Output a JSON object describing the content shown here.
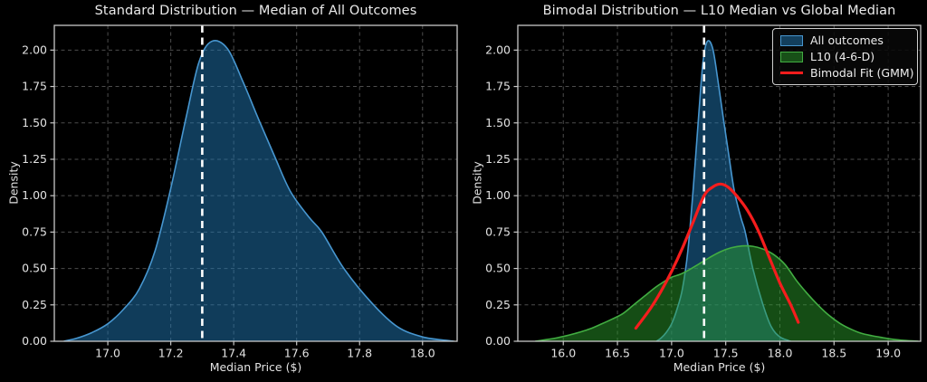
{
  "figure": {
    "bg_color": "#000000",
    "text_color": "#e2e2e2",
    "grid_color": "#b4b4b4",
    "grid_opacity": 0.42,
    "spine_color": "#c8c8c8",
    "tick_color": "#c8c8c8"
  },
  "chart_data": [
    {
      "type": "area",
      "title": "Standard Distribution — Median of All Outcomes",
      "xlabel": "Median Price ($)",
      "ylabel": "Density",
      "xlim": [
        16.83,
        18.11
      ],
      "ylim": [
        0,
        2.17
      ],
      "xticks": [
        17.0,
        17.2,
        17.4,
        17.6,
        17.8,
        18.0
      ],
      "xtick_labels": [
        "17.0",
        "17.2",
        "17.4",
        "17.6",
        "17.8",
        "18.0"
      ],
      "yticks": [
        0,
        0.25,
        0.5,
        0.75,
        1.0,
        1.25,
        1.5,
        1.75,
        2.0
      ],
      "ytick_labels": [
        "0.00",
        "0.25",
        "0.50",
        "0.75",
        "1.00",
        "1.25",
        "1.50",
        "1.75",
        "2.00"
      ],
      "grid": true,
      "legend": null,
      "median_line": {
        "x": 17.3,
        "color": "#ffffff",
        "style": "dashed"
      },
      "series": [
        {
          "name": "All outcomes",
          "kind": "area",
          "color": "#1f77b4",
          "stroke": "#4796cf",
          "fill_opacity": 0.5,
          "points": [
            [
              16.86,
              0
            ],
            [
              16.9,
              0.02
            ],
            [
              16.95,
              0.06
            ],
            [
              17.0,
              0.12
            ],
            [
              17.05,
              0.22
            ],
            [
              17.1,
              0.36
            ],
            [
              17.15,
              0.62
            ],
            [
              17.2,
              1.05
            ],
            [
              17.25,
              1.55
            ],
            [
              17.29,
              1.92
            ],
            [
              17.33,
              2.06
            ],
            [
              17.38,
              2.01
            ],
            [
              17.43,
              1.78
            ],
            [
              17.48,
              1.52
            ],
            [
              17.53,
              1.27
            ],
            [
              17.58,
              1.03
            ],
            [
              17.64,
              0.85
            ],
            [
              17.68,
              0.75
            ],
            [
              17.75,
              0.5
            ],
            [
              17.84,
              0.26
            ],
            [
              17.92,
              0.1
            ],
            [
              18.0,
              0.03
            ],
            [
              18.08,
              0.005
            ],
            [
              18.1,
              0
            ]
          ]
        }
      ]
    },
    {
      "type": "area",
      "title": "Bimodal Distribution — L10 Median vs Global Median",
      "xlabel": "Median Price ($)",
      "ylabel": "Density",
      "xlim": [
        15.58,
        19.3
      ],
      "ylim": [
        0,
        2.17
      ],
      "xticks": [
        16.0,
        16.5,
        17.0,
        17.5,
        18.0,
        18.5,
        19.0
      ],
      "xtick_labels": [
        "16.0",
        "16.5",
        "17.0",
        "17.5",
        "18.0",
        "18.5",
        "19.0"
      ],
      "yticks": [
        0,
        0.25,
        0.5,
        0.75,
        1.0,
        1.25,
        1.5,
        1.75,
        2.0
      ],
      "ytick_labels": [
        "0.00",
        "0.25",
        "0.50",
        "0.75",
        "1.00",
        "1.25",
        "1.50",
        "1.75",
        "2.00"
      ],
      "grid": true,
      "legend": {
        "position": "upper right"
      },
      "median_line": {
        "x": 17.3,
        "color": "#ffffff",
        "style": "dashed"
      },
      "series": [
        {
          "name": "All outcomes",
          "kind": "area",
          "color": "#1f77b4",
          "stroke": "#4796cf",
          "fill_opacity": 0.5,
          "points": [
            [
              16.86,
              0
            ],
            [
              16.9,
              0.02
            ],
            [
              16.95,
              0.06
            ],
            [
              17.0,
              0.12
            ],
            [
              17.05,
              0.22
            ],
            [
              17.1,
              0.36
            ],
            [
              17.15,
              0.62
            ],
            [
              17.2,
              1.05
            ],
            [
              17.25,
              1.55
            ],
            [
              17.29,
              1.92
            ],
            [
              17.33,
              2.06
            ],
            [
              17.38,
              2.01
            ],
            [
              17.43,
              1.78
            ],
            [
              17.48,
              1.52
            ],
            [
              17.53,
              1.27
            ],
            [
              17.58,
              1.03
            ],
            [
              17.64,
              0.85
            ],
            [
              17.68,
              0.75
            ],
            [
              17.75,
              0.5
            ],
            [
              17.84,
              0.26
            ],
            [
              17.92,
              0.1
            ],
            [
              18.0,
              0.03
            ],
            [
              18.08,
              0.005
            ],
            [
              18.1,
              0
            ]
          ]
        },
        {
          "name": "L10 (4-6-D)",
          "kind": "area",
          "color": "#2ca02c",
          "stroke": "#42ad42",
          "fill_opacity": 0.48,
          "points": [
            [
              15.74,
              0
            ],
            [
              15.85,
              0.012
            ],
            [
              15.95,
              0.025
            ],
            [
              16.05,
              0.042
            ],
            [
              16.15,
              0.062
            ],
            [
              16.25,
              0.086
            ],
            [
              16.35,
              0.118
            ],
            [
              16.45,
              0.152
            ],
            [
              16.55,
              0.19
            ],
            [
              16.65,
              0.25
            ],
            [
              16.75,
              0.31
            ],
            [
              16.85,
              0.37
            ],
            [
              16.92,
              0.405
            ],
            [
              17.0,
              0.44
            ],
            [
              17.08,
              0.46
            ],
            [
              17.16,
              0.49
            ],
            [
              17.25,
              0.53
            ],
            [
              17.35,
              0.575
            ],
            [
              17.45,
              0.615
            ],
            [
              17.55,
              0.642
            ],
            [
              17.65,
              0.655
            ],
            [
              17.75,
              0.652
            ],
            [
              17.85,
              0.632
            ],
            [
              17.95,
              0.592
            ],
            [
              18.05,
              0.525
            ],
            [
              18.15,
              0.42
            ],
            [
              18.25,
              0.33
            ],
            [
              18.35,
              0.25
            ],
            [
              18.45,
              0.18
            ],
            [
              18.55,
              0.125
            ],
            [
              18.65,
              0.085
            ],
            [
              18.75,
              0.055
            ],
            [
              18.85,
              0.038
            ],
            [
              18.95,
              0.025
            ],
            [
              19.05,
              0.013
            ],
            [
              19.15,
              0.006
            ],
            [
              19.28,
              0
            ]
          ]
        },
        {
          "name": "Bimodal Fit (GMM)",
          "kind": "line",
          "color": "#f51d1d",
          "stroke": "#f51d1d",
          "stroke_width": 3.2,
          "points": [
            [
              16.67,
              0.09
            ],
            [
              16.8,
              0.22
            ],
            [
              16.9,
              0.34
            ],
            [
              17.0,
              0.48
            ],
            [
              17.1,
              0.64
            ],
            [
              17.2,
              0.82
            ],
            [
              17.3,
              1.0
            ],
            [
              17.38,
              1.06
            ],
            [
              17.45,
              1.08
            ],
            [
              17.52,
              1.06
            ],
            [
              17.6,
              1.0
            ],
            [
              17.7,
              0.9
            ],
            [
              17.8,
              0.76
            ],
            [
              17.9,
              0.58
            ],
            [
              18.0,
              0.4
            ],
            [
              18.1,
              0.25
            ],
            [
              18.17,
              0.13
            ]
          ]
        }
      ]
    }
  ]
}
